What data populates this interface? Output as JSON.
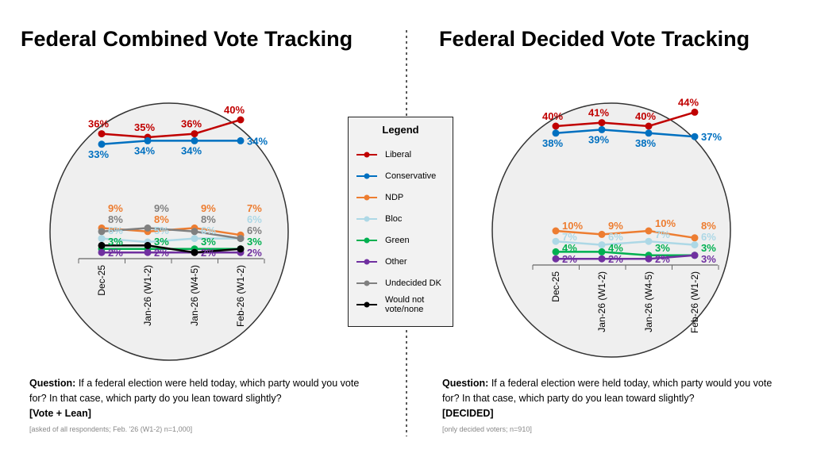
{
  "charts_titles": [
    "Federal Combined Vote Tracking",
    "Federal Decided Vote Tracking"
  ],
  "legend": {
    "title": "Legend",
    "items": [
      {
        "name": "Liberal",
        "color": "#c00000"
      },
      {
        "name": "Conservative",
        "color": "#0070c0"
      },
      {
        "name": "NDP",
        "color": "#ed7d31"
      },
      {
        "name": "Bloc",
        "color": "#add8e6"
      },
      {
        "name": "Green",
        "color": "#00b050"
      },
      {
        "name": "Other",
        "color": "#7030a0"
      },
      {
        "name": "Undecided DK",
        "color": "#808080"
      },
      {
        "name": "Would not vote/none",
        "color": "#000000"
      }
    ]
  },
  "questions": [
    {
      "label": "Question:",
      "text": "If a federal election were held today, which party would you vote for? In that case, which party do you lean toward slightly?",
      "tag": "[Vote + Lean]",
      "note": "[asked of all respondents; Feb. '26 (W1-2) n=1,000]"
    },
    {
      "label": "Question:",
      "text": "If a federal election were held today, which party would you vote for? In that case, which party do you lean toward slightly?",
      "tag": "[DECIDED]",
      "note": "[only decided voters; n=910]"
    }
  ],
  "chart_data": [
    {
      "type": "line",
      "title": "Federal Combined Vote Tracking",
      "categories": [
        "Dec-25",
        "Jan-26 (W1-2)",
        "Jan-26 (W4-5)",
        "Feb-26 (W1-2)"
      ],
      "series": [
        {
          "name": "Liberal",
          "values": [
            36,
            35,
            36,
            40
          ]
        },
        {
          "name": "Conservative",
          "values": [
            33,
            34,
            34,
            34
          ]
        },
        {
          "name": "NDP",
          "values": [
            9,
            8,
            9,
            7
          ]
        },
        {
          "name": "Bloc",
          "values": [
            6,
            5,
            6,
            6
          ]
        },
        {
          "name": "Green",
          "values": [
            3,
            3,
            3,
            3
          ]
        },
        {
          "name": "Other",
          "values": [
            2,
            2,
            2,
            2
          ]
        },
        {
          "name": "Undecided DK",
          "values": [
            8,
            9,
            8,
            6
          ]
        },
        {
          "name": "Would not vote/none",
          "values": [
            4,
            4,
            2,
            3
          ]
        }
      ]
    },
    {
      "type": "line",
      "title": "Federal Decided Vote Tracking",
      "categories": [
        "Dec-25",
        "Jan-26 (W1-2)",
        "Jan-26 (W4-5)",
        "Feb-26 (W1-2)"
      ],
      "series": [
        {
          "name": "Liberal",
          "values": [
            40,
            41,
            40,
            44
          ]
        },
        {
          "name": "Conservative",
          "values": [
            38,
            39,
            38,
            37
          ]
        },
        {
          "name": "NDP",
          "values": [
            10,
            9,
            10,
            8
          ]
        },
        {
          "name": "Bloc",
          "values": [
            7,
            6,
            7,
            6
          ]
        },
        {
          "name": "Green",
          "values": [
            4,
            4,
            3,
            3
          ]
        },
        {
          "name": "Other",
          "values": [
            2,
            2,
            2,
            3
          ]
        }
      ]
    }
  ]
}
